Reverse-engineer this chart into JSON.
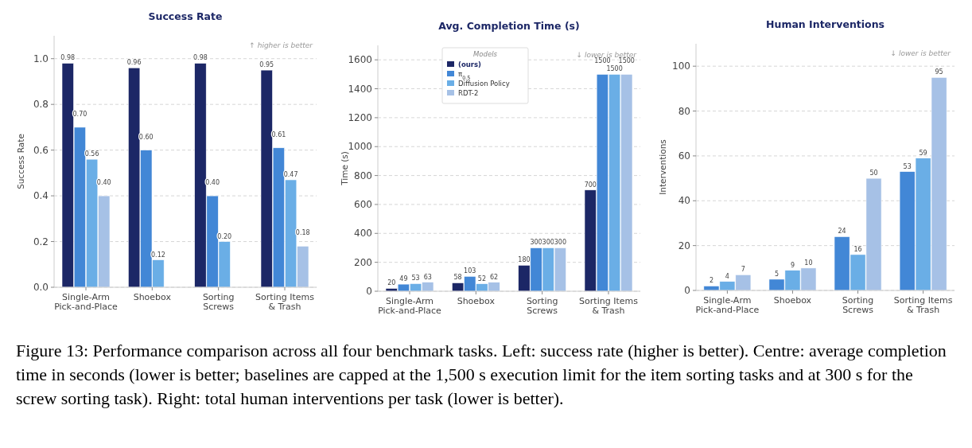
{
  "chart_data": [
    {
      "type": "bar",
      "title": "Success Rate",
      "ylabel": "Success Rate",
      "categories": [
        "Single-Arm\nPick-and-Place",
        "Shoebox",
        "Sorting\nScrews",
        "Sorting Items\n& Trash"
      ],
      "ylim": [
        0,
        1.1
      ],
      "yticks": [
        {
          "value": 0,
          "label": "0.0"
        },
        0.2,
        0.4,
        0.6,
        0.8,
        {
          "value": 1,
          "label": "1.0"
        }
      ],
      "grid": "y",
      "annotations": [
        "↑ higher is better",
        "Figure 13: Performance comparison across all four benchmark tasks. Left: success rate (higher is better). Centre: average completion time in seconds (lower is better; baselines are capped at the 1,500 s execution limit for the item sorting tasks and at 300 s for the screw sorting task). Right: total human interventions per task (lower is better)."
      ],
      "series": [
        {
          "color": "#1c2766",
          "values": [
            0.98,
            0.96,
            0.98,
            0.95
          ],
          "value_labels": [
            "0.98",
            "0.96",
            "0.98",
            "0.95"
          ]
        },
        {
          "color": "#4287d6",
          "values": [
            0.7,
            0.6,
            0.4,
            0.61
          ],
          "value_labels": [
            "0.70",
            "0.60",
            "0.40",
            "0.61"
          ]
        },
        {
          "color": "#6aaee6",
          "values": [
            0.56,
            0.12,
            0.2,
            0.47
          ],
          "value_labels": [
            "0.56",
            "0.12",
            "0.20",
            "0.47"
          ]
        },
        {
          "color": "#a6c1e6",
          "values": [
            0.4,
            null,
            null,
            0.18
          ],
          "value_labels": [
            "0.40",
            null,
            null,
            "0.18"
          ]
        }
      ]
    },
    {
      "type": "bar",
      "title": "Avg. Completion Time (s)",
      "ylabel": "Time (s)",
      "categories": [
        "Single-Arm\nPick-and-Place",
        "Shoebox",
        "Sorting\nScrews",
        "Sorting Items\n& Trash"
      ],
      "ylim": [
        0,
        1700
      ],
      "yticks": [
        0,
        200,
        400,
        600,
        800,
        1000,
        1200,
        1400,
        1600
      ],
      "grid": "y",
      "data_labels": true,
      "legend": "top",
      "legend_title": "Models",
      "annotations": [
        "↓ lower is better"
      ],
      "series": [
        {
          "name": "(ours)",
          "color": "#1c2766",
          "values": [
            20,
            58,
            180,
            700
          ]
        },
        {
          "name": "π$_{0.5}$",
          "color": "#4287d6",
          "values": [
            49,
            103,
            300,
            1500
          ]
        },
        {
          "name": "Diffusion Policy",
          "color": "#6aaee6",
          "values": [
            53,
            52,
            300,
            1500
          ]
        },
        {
          "name": "RDT-2",
          "color": "#a6c1e6",
          "values": [
            63,
            62,
            300,
            1500
          ]
        }
      ]
    },
    {
      "type": "bar",
      "title": "Human Interventions",
      "ylabel": "Interventions",
      "categories": [
        "Single-Arm\nPick-and-Place",
        "Shoebox",
        "Sorting\nScrews",
        "Sorting Items\n& Trash"
      ],
      "ylim": [
        0,
        110
      ],
      "yticks": [
        0,
        20,
        40,
        60,
        80,
        100
      ],
      "grid": "y",
      "data_labels": true,
      "annotations": [
        "↓ lower is better"
      ],
      "series": [
        {
          "color": "#4287d6",
          "values": [
            2,
            5,
            24,
            53
          ]
        },
        {
          "color": "#6aaee6",
          "values": [
            4,
            9,
            16,
            59
          ]
        },
        {
          "color": "#a6c1e6",
          "values": [
            7,
            10,
            50,
            95
          ]
        }
      ]
    }
  ]
}
